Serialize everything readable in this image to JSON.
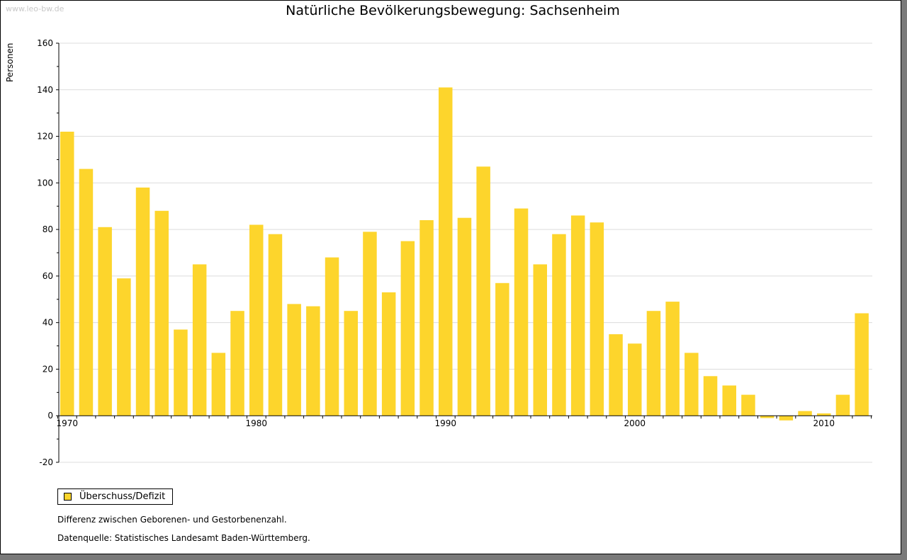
{
  "watermark": "www.leo-bw.de",
  "colors": {
    "bar": "#fdd52c",
    "grid": "#dcdcdc",
    "axis": "#000000"
  },
  "legend": {
    "label": "Überschuss/Defizit"
  },
  "notes": {
    "definition": "Differenz zwischen Geborenen- und Gestorbenenzahl.",
    "source": "Datenquelle: Statistisches Landesamt Baden-Württemberg."
  },
  "chart_data": {
    "type": "bar",
    "title": "Natürliche Bevölkerungsbewegung: Sachsenheim",
    "xlabel": "",
    "ylabel": "Personen",
    "ylim": [
      -20,
      160
    ],
    "yticks": [
      -20,
      0,
      20,
      40,
      60,
      80,
      100,
      120,
      140,
      160
    ],
    "xtick_labels": [
      "1970",
      "1980",
      "1990",
      "2000",
      "2010"
    ],
    "grid": true,
    "legend_position": "bottom-left",
    "categories": [
      1970,
      1971,
      1972,
      1973,
      1974,
      1975,
      1976,
      1977,
      1978,
      1979,
      1980,
      1981,
      1982,
      1983,
      1984,
      1985,
      1986,
      1987,
      1988,
      1989,
      1990,
      1991,
      1992,
      1993,
      1994,
      1995,
      1996,
      1997,
      1998,
      1999,
      2000,
      2001,
      2002,
      2003,
      2004,
      2005,
      2006,
      2007,
      2008,
      2009,
      2010,
      2011,
      2012
    ],
    "series": [
      {
        "name": "Überschuss/Defizit",
        "values": [
          122,
          106,
          81,
          59,
          98,
          88,
          37,
          65,
          27,
          45,
          82,
          78,
          48,
          47,
          68,
          45,
          79,
          53,
          75,
          84,
          141,
          85,
          107,
          57,
          89,
          65,
          78,
          86,
          83,
          35,
          31,
          45,
          49,
          27,
          17,
          13,
          9,
          -1,
          -2,
          2,
          1,
          9,
          44
        ]
      }
    ]
  }
}
